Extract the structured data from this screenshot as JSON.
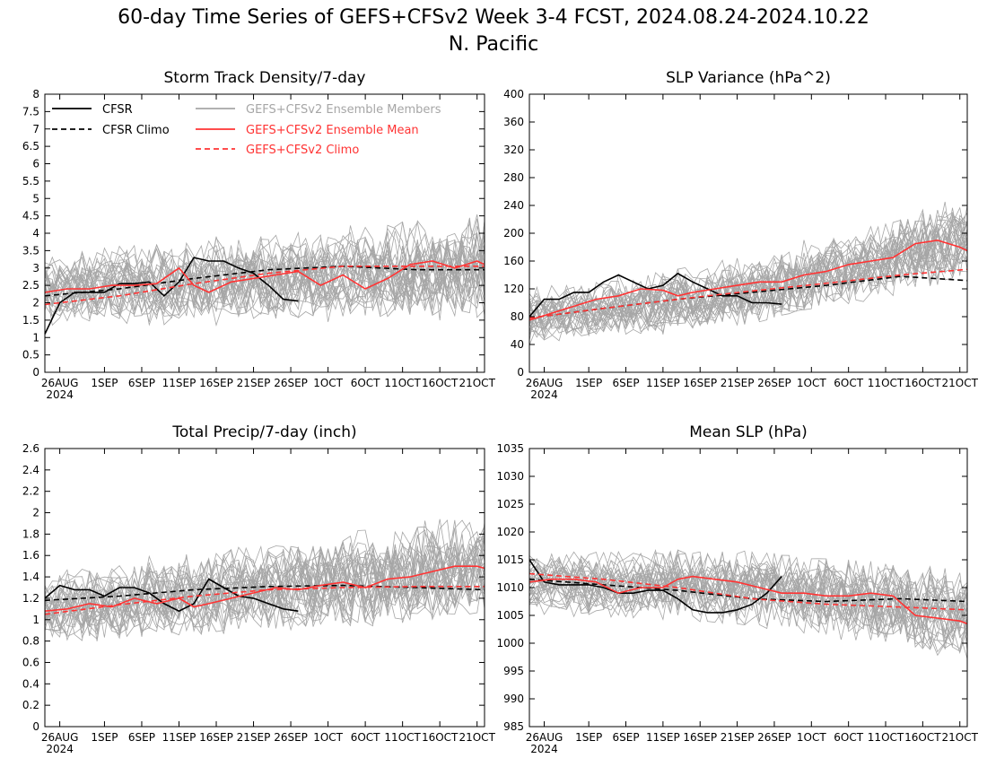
{
  "figure": {
    "title_line1": "60-day Time Series of GEFS+CFSv2 Week 3-4 FCST, 2024.08.24-2024.10.22",
    "title_line2": "N. Pacific"
  },
  "legend": {
    "cfsr": "CFSR",
    "cfsr_climo": "CFSR Climo",
    "members": "GEFS+CFSv2 Ensemble Members",
    "ens_mean": "GEFS+CFSv2 Ensemble Mean",
    "gefs_climo": "GEFS+CFSv2 Climo"
  },
  "colors": {
    "cfsr": "#000000",
    "members": "#a6a6a6",
    "ens_mean": "#ff3333",
    "gefs_climo": "#ff3333"
  },
  "x_axis": {
    "day_range": [
      0,
      59
    ],
    "tick_days": [
      2,
      8,
      13,
      18,
      23,
      28,
      33,
      38,
      43,
      48,
      53,
      58
    ],
    "tick_labels": [
      "26AUG",
      "1SEP",
      "6SEP",
      "11SEP",
      "16SEP",
      "21SEP",
      "26SEP",
      "1OCT",
      "6OCT",
      "11OCT",
      "16OCT",
      "21OCT"
    ],
    "year_label": "2024"
  },
  "chart_data": [
    {
      "type": "line",
      "title": "Storm Track Density/7-day",
      "ylim": [
        0,
        8
      ],
      "yticks": [
        0,
        0.5,
        1,
        1.5,
        2,
        2.5,
        3,
        3.5,
        4,
        4.5,
        5,
        5.5,
        6,
        6.5,
        7,
        7.5,
        8
      ],
      "ytick_labels": [
        "0",
        "0.5",
        "1",
        "1.5",
        "2",
        "2.5",
        "3",
        "3.5",
        "4",
        "4.5",
        "5",
        "5.5",
        "6",
        "6.5",
        "7",
        "7.5",
        "8"
      ],
      "members_spread": 0.75,
      "members_mean": [
        [
          0,
          2.4
        ],
        [
          30,
          2.7
        ],
        [
          59,
          3.0
        ]
      ],
      "series": [
        {
          "name": "CFSR",
          "x": [
            0,
            2,
            4,
            6,
            8,
            10,
            12,
            14,
            16,
            18,
            20,
            22,
            24,
            26,
            28,
            30,
            32,
            34
          ],
          "values": [
            1.1,
            2.0,
            2.3,
            2.3,
            2.3,
            2.55,
            2.55,
            2.6,
            2.2,
            2.6,
            3.3,
            3.2,
            3.2,
            3.0,
            2.85,
            2.5,
            2.1,
            2.05
          ]
        },
        {
          "name": "CFSR Climo",
          "x": [
            0,
            10,
            20,
            30,
            40,
            50,
            59
          ],
          "values": [
            2.2,
            2.4,
            2.7,
            2.95,
            3.05,
            2.95,
            2.95
          ]
        },
        {
          "name": "GEFS+CFSv2 Ensemble Mean",
          "x": [
            0,
            3,
            6,
            9,
            12,
            15,
            18,
            20,
            22,
            25,
            28,
            31,
            34,
            37,
            40,
            43,
            46,
            49,
            52,
            55,
            58,
            59
          ],
          "values": [
            2.3,
            2.4,
            2.4,
            2.5,
            2.5,
            2.55,
            3.0,
            2.5,
            2.3,
            2.6,
            2.7,
            2.8,
            2.9,
            2.5,
            2.8,
            2.4,
            2.7,
            3.1,
            3.2,
            3.0,
            3.2,
            3.1
          ]
        },
        {
          "name": "GEFS+CFSv2 Climo",
          "x": [
            0,
            10,
            20,
            30,
            40,
            50,
            59
          ],
          "values": [
            1.95,
            2.2,
            2.55,
            2.85,
            3.05,
            3.05,
            3.05
          ]
        }
      ]
    },
    {
      "type": "line",
      "title": "SLP Variance (hPa^2)",
      "ylim": [
        0,
        400
      ],
      "yticks": [
        0,
        40,
        80,
        120,
        160,
        200,
        240,
        280,
        320,
        360,
        400
      ],
      "ytick_labels": [
        "0",
        "40",
        "80",
        "120",
        "160",
        "200",
        "240",
        "280",
        "320",
        "360",
        "400"
      ],
      "members_spread": 30,
      "members_mean": [
        [
          0,
          80
        ],
        [
          30,
          115
        ],
        [
          59,
          195
        ]
      ],
      "series": [
        {
          "name": "CFSR",
          "x": [
            0,
            2,
            4,
            6,
            8,
            10,
            12,
            14,
            16,
            18,
            20,
            22,
            24,
            26,
            28,
            30,
            32,
            34
          ],
          "values": [
            80,
            105,
            105,
            115,
            115,
            130,
            140,
            130,
            120,
            125,
            142,
            130,
            120,
            110,
            110,
            100,
            100,
            98
          ]
        },
        {
          "name": "CFSR Climo",
          "x": [
            0,
            10,
            20,
            30,
            40,
            50,
            59
          ],
          "values": [
            78,
            92,
            105,
            115,
            125,
            138,
            132
          ]
        },
        {
          "name": "GEFS+CFSv2 Ensemble Mean",
          "x": [
            0,
            3,
            6,
            9,
            12,
            15,
            18,
            20,
            22,
            25,
            28,
            31,
            34,
            37,
            40,
            43,
            46,
            49,
            52,
            55,
            58,
            59
          ],
          "values": [
            75,
            85,
            95,
            105,
            110,
            120,
            118,
            110,
            115,
            120,
            125,
            130,
            130,
            140,
            145,
            155,
            160,
            165,
            185,
            190,
            180,
            175
          ]
        },
        {
          "name": "GEFS+CFSv2 Climo",
          "x": [
            0,
            10,
            20,
            30,
            40,
            50,
            59
          ],
          "values": [
            78,
            92,
            105,
            117,
            128,
            140,
            148
          ]
        }
      ]
    },
    {
      "type": "line",
      "title": "Total Precip/7-day (inch)",
      "ylim": [
        0,
        2.6
      ],
      "yticks": [
        0,
        0.2,
        0.4,
        0.6,
        0.8,
        1,
        1.2,
        1.4,
        1.6,
        1.8,
        2,
        2.2,
        2.4,
        2.6
      ],
      "ytick_labels": [
        "0",
        "0.2",
        "0.4",
        "0.6",
        "0.8",
        "1",
        "1.2",
        "1.4",
        "1.6",
        "1.8",
        "2",
        "2.2",
        "2.4",
        "2.6"
      ],
      "members_spread": 0.25,
      "members_mean": [
        [
          0,
          1.1
        ],
        [
          30,
          1.3
        ],
        [
          59,
          1.5
        ]
      ],
      "series": [
        {
          "name": "CFSR",
          "x": [
            0,
            2,
            4,
            6,
            8,
            10,
            12,
            14,
            16,
            18,
            20,
            22,
            24,
            26,
            28,
            30,
            32,
            34
          ],
          "values": [
            1.2,
            1.32,
            1.28,
            1.28,
            1.22,
            1.3,
            1.3,
            1.25,
            1.15,
            1.08,
            1.15,
            1.38,
            1.3,
            1.22,
            1.2,
            1.15,
            1.1,
            1.08
          ]
        },
        {
          "name": "CFSR Climo",
          "x": [
            0,
            10,
            20,
            30,
            40,
            50,
            59
          ],
          "values": [
            1.18,
            1.22,
            1.28,
            1.31,
            1.32,
            1.3,
            1.28
          ]
        },
        {
          "name": "GEFS+CFSv2 Ensemble Mean",
          "x": [
            0,
            3,
            6,
            9,
            12,
            15,
            18,
            20,
            22,
            25,
            28,
            31,
            34,
            37,
            40,
            43,
            46,
            49,
            52,
            55,
            58,
            59
          ],
          "values": [
            1.08,
            1.1,
            1.15,
            1.12,
            1.2,
            1.15,
            1.2,
            1.12,
            1.15,
            1.2,
            1.25,
            1.3,
            1.28,
            1.32,
            1.35,
            1.3,
            1.38,
            1.4,
            1.45,
            1.5,
            1.5,
            1.48
          ]
        },
        {
          "name": "GEFS+CFSv2 Climo",
          "x": [
            0,
            10,
            20,
            30,
            40,
            50,
            59
          ],
          "values": [
            1.05,
            1.14,
            1.22,
            1.28,
            1.3,
            1.31,
            1.31
          ]
        }
      ]
    },
    {
      "type": "line",
      "title": "Mean SLP (hPa)",
      "ylim": [
        985,
        1035
      ],
      "yticks": [
        985,
        990,
        995,
        1000,
        1005,
        1010,
        1015,
        1020,
        1025,
        1030,
        1035
      ],
      "ytick_labels": [
        "985",
        "990",
        "995",
        "1000",
        "1005",
        "1010",
        "1015",
        "1020",
        "1025",
        "1030",
        "1035"
      ],
      "members_spread": 4,
      "members_mean": [
        [
          0,
          1011
        ],
        [
          30,
          1010
        ],
        [
          59,
          1005
        ]
      ],
      "series": [
        {
          "name": "CFSR",
          "x": [
            0,
            2,
            4,
            6,
            8,
            10,
            12,
            14,
            16,
            18,
            20,
            22,
            24,
            26,
            28,
            30,
            32,
            34
          ],
          "values": [
            1015,
            1011,
            1010.5,
            1010.5,
            1010.5,
            1010,
            1009,
            1009,
            1009.5,
            1009.5,
            1008,
            1006,
            1005.5,
            1005.5,
            1006,
            1007,
            1009,
            1012
          ]
        },
        {
          "name": "CFSR Climo",
          "x": [
            0,
            10,
            20,
            30,
            40,
            50,
            59
          ],
          "values": [
            1011.5,
            1010.5,
            1009.5,
            1008,
            1007.5,
            1008,
            1007.5
          ]
        },
        {
          "name": "GEFS+CFSv2 Ensemble Mean",
          "x": [
            0,
            3,
            6,
            9,
            12,
            15,
            18,
            20,
            22,
            25,
            28,
            31,
            34,
            37,
            40,
            43,
            46,
            49,
            52,
            55,
            58,
            59
          ],
          "values": [
            1011,
            1011.5,
            1011.5,
            1011,
            1009,
            1010,
            1010,
            1011.5,
            1012,
            1011.5,
            1011,
            1010,
            1009,
            1009,
            1008.5,
            1008.5,
            1009,
            1008.5,
            1005,
            1004.5,
            1004,
            1003.5
          ]
        },
        {
          "name": "GEFS+CFSv2 Climo",
          "x": [
            0,
            10,
            20,
            30,
            40,
            50,
            59
          ],
          "values": [
            1012.5,
            1011.5,
            1010,
            1008,
            1007,
            1006.5,
            1006
          ]
        }
      ]
    }
  ]
}
